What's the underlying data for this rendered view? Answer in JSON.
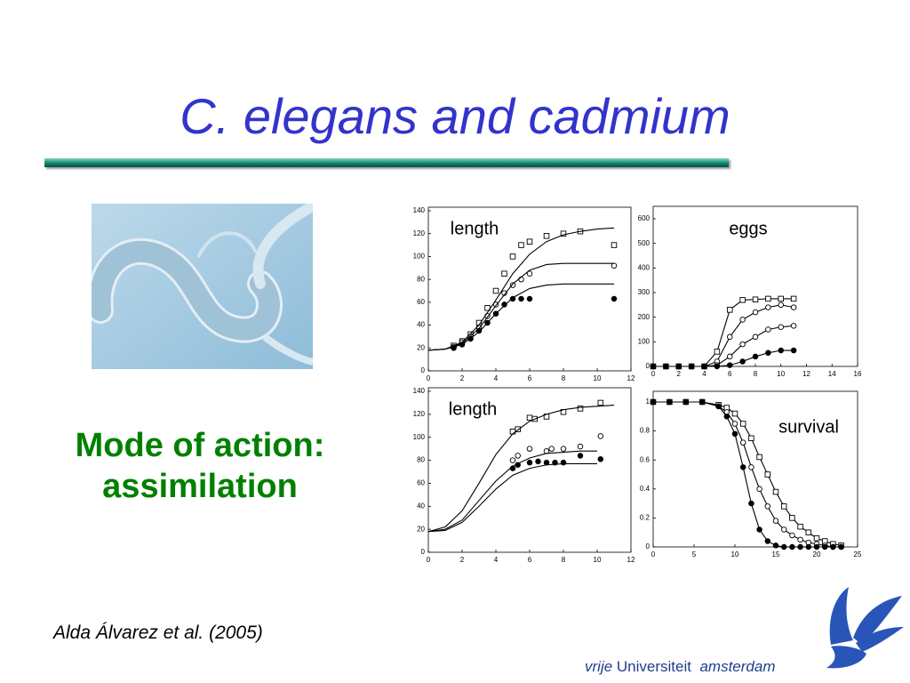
{
  "title": "C. elegans and cadmium",
  "subheading": [
    "Mode of action:",
    "assimilation"
  ],
  "citation": "Alda Álvarez et al. (2005)",
  "logo": [
    "vrije",
    "Universiteit",
    "amsterdam"
  ],
  "chart_data": [
    {
      "type": "scatter",
      "label": "length",
      "xlim": [
        0,
        12
      ],
      "ylim": [
        0,
        140
      ],
      "xticks": [
        0,
        2,
        4,
        6,
        8,
        10,
        12
      ],
      "yticks": [
        0,
        20,
        40,
        60,
        80,
        100,
        120,
        140
      ],
      "series": [
        {
          "marker": "square",
          "color": "#000",
          "x": [
            1.5,
            2,
            2.5,
            3,
            3.5,
            4,
            4.5,
            5,
            5.5,
            6,
            7,
            8,
            9,
            11
          ],
          "values": [
            22,
            26,
            32,
            42,
            55,
            70,
            85,
            100,
            110,
            113,
            118,
            120,
            122,
            110
          ]
        },
        {
          "marker": "circle",
          "color": "#000",
          "x": [
            1.5,
            2,
            2.5,
            3,
            3.5,
            4,
            4.5,
            5,
            5.5,
            6,
            11
          ],
          "values": [
            21,
            25,
            30,
            38,
            48,
            58,
            68,
            75,
            80,
            85,
            92
          ]
        },
        {
          "marker": "filled-circle",
          "color": "#000",
          "x": [
            1.5,
            2,
            2.5,
            3,
            3.5,
            4,
            4.5,
            5,
            5.5,
            6,
            11
          ],
          "values": [
            20,
            23,
            28,
            35,
            42,
            50,
            58,
            63,
            63,
            63,
            63
          ]
        },
        {
          "marker": "none",
          "color": "#000",
          "x": [
            0,
            1,
            2,
            3,
            4,
            5,
            6,
            7,
            8,
            9,
            10,
            11
          ],
          "values": [
            18,
            19,
            25,
            40,
            62,
            85,
            102,
            113,
            119,
            122,
            124,
            125
          ]
        },
        {
          "marker": "none",
          "color": "#000",
          "x": [
            0,
            1,
            2,
            3,
            4,
            5,
            6,
            7,
            8,
            9,
            10,
            11
          ],
          "values": [
            18,
            19,
            24,
            37,
            57,
            76,
            88,
            93,
            94,
            94,
            94,
            94
          ]
        },
        {
          "marker": "none",
          "color": "#000",
          "x": [
            0,
            1,
            2,
            3,
            4,
            5,
            6,
            7,
            8,
            9,
            10,
            11
          ],
          "values": [
            18,
            19,
            23,
            34,
            50,
            64,
            72,
            75,
            76,
            76,
            76,
            76
          ]
        }
      ]
    },
    {
      "type": "scatter",
      "label": "eggs",
      "xlim": [
        0,
        16
      ],
      "ylim": [
        0,
        600
      ],
      "xticks": [
        0,
        2,
        4,
        6,
        8,
        10,
        12,
        14,
        16
      ],
      "yticks": [
        0,
        100,
        200,
        300,
        400,
        500,
        600
      ],
      "series": [
        {
          "marker": "square",
          "line": true,
          "color": "#000",
          "x": [
            0,
            1,
            2,
            3,
            4,
            5,
            6,
            7,
            8,
            9,
            10,
            11
          ],
          "values": [
            0,
            0,
            0,
            0,
            0,
            60,
            230,
            270,
            272,
            275,
            275,
            275
          ]
        },
        {
          "marker": "circle",
          "line": true,
          "color": "#000",
          "x": [
            0,
            1,
            2,
            3,
            4,
            5,
            6,
            7,
            8,
            9,
            10,
            11
          ],
          "values": [
            0,
            0,
            0,
            0,
            0,
            20,
            120,
            190,
            220,
            240,
            250,
            240
          ]
        },
        {
          "marker": "circle",
          "line": true,
          "color": "#000",
          "x": [
            0,
            1,
            2,
            3,
            4,
            5,
            6,
            7,
            8,
            9,
            10,
            11
          ],
          "values": [
            0,
            0,
            0,
            0,
            0,
            5,
            40,
            90,
            120,
            150,
            160,
            165
          ]
        },
        {
          "marker": "filled-circle",
          "line": true,
          "color": "#000",
          "x": [
            0,
            1,
            2,
            3,
            4,
            5,
            6,
            7,
            8,
            9,
            10,
            11
          ],
          "values": [
            0,
            0,
            0,
            0,
            0,
            0,
            5,
            20,
            40,
            55,
            65,
            65
          ]
        }
      ]
    },
    {
      "type": "scatter",
      "label": "length",
      "xlim": [
        0,
        12
      ],
      "ylim": [
        0,
        140
      ],
      "xticks": [
        0,
        2,
        4,
        6,
        8,
        10,
        12
      ],
      "yticks": [
        0,
        20,
        40,
        60,
        80,
        100,
        120,
        140
      ],
      "series": [
        {
          "marker": "square",
          "color": "#000",
          "x": [
            5,
            5.3,
            6,
            6.3,
            7,
            8,
            9,
            10.2
          ],
          "values": [
            105,
            107,
            117,
            116,
            118,
            122,
            125,
            130
          ]
        },
        {
          "marker": "circle",
          "color": "#000",
          "x": [
            5,
            5.3,
            6,
            7,
            7.3,
            8,
            9,
            10.2
          ],
          "values": [
            80,
            84,
            90,
            88,
            90,
            90,
            92,
            101
          ]
        },
        {
          "marker": "filled-circle",
          "color": "#000",
          "x": [
            5,
            5.3,
            6,
            6.5,
            7,
            7.5,
            8,
            9,
            10.2
          ],
          "values": [
            73,
            76,
            78,
            79,
            78,
            78,
            78,
            84,
            81
          ]
        },
        {
          "marker": "none",
          "color": "#000",
          "x": [
            0,
            1,
            2,
            3,
            4,
            5,
            6,
            7,
            8,
            9,
            10,
            11
          ],
          "values": [
            18,
            22,
            36,
            60,
            85,
            103,
            114,
            120,
            124,
            126,
            127,
            128
          ]
        },
        {
          "marker": "none",
          "color": "#000",
          "x": [
            0,
            1,
            2,
            3,
            4,
            5,
            6,
            7,
            8,
            9,
            10
          ],
          "values": [
            18,
            20,
            28,
            45,
            62,
            75,
            82,
            86,
            87,
            88,
            88
          ]
        },
        {
          "marker": "none",
          "color": "#000",
          "x": [
            0,
            1,
            2,
            3,
            4,
            5,
            6,
            7,
            8,
            9,
            10
          ],
          "values": [
            18,
            19,
            26,
            40,
            55,
            67,
            73,
            76,
            77,
            77,
            77
          ]
        }
      ]
    },
    {
      "type": "scatter",
      "label": "survival",
      "xlim": [
        0,
        25
      ],
      "ylim": [
        0,
        1
      ],
      "xticks": [
        0,
        5,
        10,
        15,
        20,
        25
      ],
      "yticks": [
        0,
        0.2,
        0.4,
        0.6,
        0.8,
        1
      ],
      "series": [
        {
          "marker": "square",
          "line": true,
          "color": "#000",
          "x": [
            0,
            2,
            4,
            6,
            8,
            9,
            10,
            11,
            12,
            13,
            14,
            15,
            16,
            17,
            18,
            19,
            20,
            21,
            22,
            23
          ],
          "values": [
            1,
            1,
            1,
            1,
            0.98,
            0.96,
            0.92,
            0.85,
            0.75,
            0.62,
            0.5,
            0.38,
            0.28,
            0.2,
            0.14,
            0.1,
            0.06,
            0.04,
            0.02,
            0.01
          ]
        },
        {
          "marker": "circle",
          "line": true,
          "color": "#000",
          "x": [
            0,
            2,
            4,
            6,
            8,
            9,
            10,
            11,
            12,
            13,
            14,
            15,
            16,
            17,
            18,
            19,
            20,
            21,
            22,
            23
          ],
          "values": [
            1,
            1,
            1,
            1,
            0.97,
            0.93,
            0.85,
            0.72,
            0.55,
            0.4,
            0.28,
            0.18,
            0.12,
            0.08,
            0.05,
            0.03,
            0.02,
            0.01,
            0,
            0
          ]
        },
        {
          "marker": "filled-circle",
          "line": true,
          "color": "#000",
          "x": [
            0,
            2,
            4,
            6,
            8,
            9,
            10,
            11,
            12,
            13,
            14,
            15,
            16,
            17,
            18,
            19,
            20,
            21,
            22,
            23
          ],
          "values": [
            1,
            1,
            1,
            1,
            0.97,
            0.9,
            0.78,
            0.55,
            0.3,
            0.12,
            0.04,
            0.01,
            0,
            0,
            0,
            0,
            0,
            0,
            0,
            0
          ]
        }
      ]
    }
  ]
}
